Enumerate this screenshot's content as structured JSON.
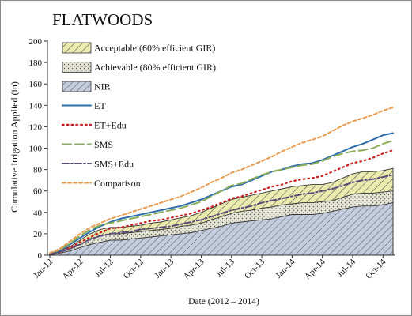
{
  "chart_data": {
    "type": "area",
    "title": "FLATWOODS",
    "xlabel": "Date (2012 – 2014)",
    "ylabel": "Cumulative Irrigation Applied (in)",
    "ylim": [
      0,
      200
    ],
    "yticks": [
      0,
      20,
      40,
      60,
      80,
      100,
      120,
      140,
      160,
      180,
      200
    ],
    "xticks": [
      "Jan-12",
      "Apr-12",
      "Jul-12",
      "Oct-12",
      "Jan-13",
      "Apr-13",
      "Jul-13",
      "Oct-13",
      "Jan-14",
      "Apr-14",
      "Jul-14",
      "Oct-14"
    ],
    "x": [
      "Jan-12",
      "Feb-12",
      "Mar-12",
      "Apr-12",
      "May-12",
      "Jun-12",
      "Jul-12",
      "Aug-12",
      "Sep-12",
      "Oct-12",
      "Nov-12",
      "Dec-12",
      "Jan-13",
      "Feb-13",
      "Mar-13",
      "Apr-13",
      "May-13",
      "Jun-13",
      "Jul-13",
      "Aug-13",
      "Sep-13",
      "Oct-13",
      "Nov-13",
      "Dec-13",
      "Jan-14",
      "Feb-14",
      "Mar-14",
      "Apr-14",
      "May-14",
      "Jun-14",
      "Jul-14",
      "Aug-14",
      "Sep-14",
      "Oct-14",
      "Nov-14"
    ],
    "grid": false,
    "legend_position": "top-left",
    "series": [
      {
        "name": "Acceptable (60% efficient GIR)",
        "kind": "band",
        "pattern": "diagonal-hatch",
        "color": "#e8e8a0",
        "stroke": "#333333",
        "values": [
          1,
          4,
          8,
          14,
          20,
          24,
          26,
          26,
          27,
          28,
          30,
          31,
          33,
          35,
          37,
          40,
          44,
          48,
          52,
          54,
          56,
          58,
          60,
          62,
          64,
          65,
          66,
          66,
          68,
          72,
          76,
          78,
          78,
          79,
          81
        ]
      },
      {
        "name": "Achievable (80% efficient GIR)",
        "kind": "band",
        "pattern": "dots",
        "color": "#dedece",
        "stroke": "#333333",
        "values": [
          1,
          3,
          6,
          10,
          15,
          18,
          20,
          20,
          21,
          22,
          23,
          24,
          25,
          27,
          28,
          30,
          33,
          36,
          39,
          41,
          42,
          44,
          45,
          47,
          48,
          49,
          49,
          50,
          51,
          54,
          57,
          58,
          58,
          59,
          60
        ]
      },
      {
        "name": "NIR",
        "kind": "band",
        "pattern": "diagonal-hatch",
        "color": "#b8c2d8",
        "stroke": "#333333",
        "values": [
          0,
          2,
          4,
          7,
          10,
          12,
          14,
          14,
          15,
          16,
          17,
          18,
          19,
          20,
          21,
          23,
          25,
          27,
          30,
          31,
          32,
          33,
          34,
          36,
          38,
          38,
          38,
          39,
          41,
          43,
          45,
          46,
          46,
          47,
          49
        ]
      },
      {
        "name": "ET",
        "kind": "line",
        "color": "#2c6dab",
        "dash": "solid",
        "values": [
          1,
          4,
          10,
          16,
          22,
          27,
          31,
          34,
          36,
          38,
          40,
          42,
          44,
          46,
          49,
          52,
          56,
          60,
          64,
          66,
          70,
          74,
          78,
          80,
          83,
          85,
          86,
          89,
          93,
          97,
          101,
          104,
          108,
          112,
          114
        ]
      },
      {
        "name": "ET+Edu",
        "kind": "line",
        "color": "#cc2020",
        "dash": "dotted",
        "values": [
          1,
          3,
          7,
          12,
          17,
          21,
          25,
          26,
          28,
          30,
          32,
          33,
          35,
          37,
          39,
          42,
          45,
          49,
          53,
          55,
          58,
          61,
          64,
          66,
          69,
          71,
          72,
          74,
          78,
          82,
          86,
          88,
          91,
          95,
          98
        ]
      },
      {
        "name": "SMS",
        "kind": "line",
        "color": "#8bad5a",
        "dash": "long-dash",
        "values": [
          1,
          5,
          11,
          18,
          24,
          28,
          30,
          32,
          34,
          36,
          38,
          40,
          42,
          44,
          47,
          50,
          55,
          60,
          65,
          67,
          71,
          75,
          78,
          80,
          82,
          84,
          85,
          88,
          92,
          95,
          97,
          98,
          100,
          104,
          107
        ]
      },
      {
        "name": "SMS+Edu",
        "kind": "line",
        "color": "#5a4a7a",
        "dash": "dash-dot",
        "values": [
          1,
          3,
          6,
          10,
          15,
          18,
          20,
          21,
          22,
          24,
          25,
          26,
          27,
          29,
          31,
          33,
          36,
          39,
          42,
          44,
          46,
          49,
          51,
          53,
          55,
          57,
          58,
          60,
          62,
          65,
          68,
          70,
          71,
          73,
          75
        ]
      },
      {
        "name": "Comparison",
        "kind": "line",
        "color": "#e89a4e",
        "dash": "dashed",
        "values": [
          2,
          6,
          13,
          20,
          26,
          30,
          34,
          37,
          40,
          43,
          46,
          49,
          52,
          55,
          59,
          63,
          68,
          72,
          77,
          80,
          84,
          88,
          92,
          97,
          101,
          105,
          108,
          111,
          116,
          121,
          125,
          128,
          131,
          135,
          138
        ]
      }
    ]
  }
}
